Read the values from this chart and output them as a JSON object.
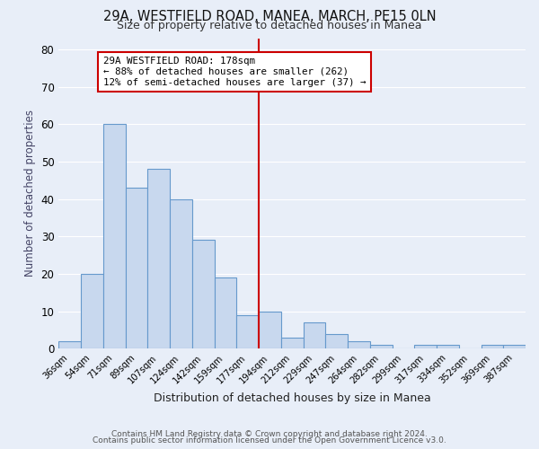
{
  "title": "29A, WESTFIELD ROAD, MANEA, MARCH, PE15 0LN",
  "subtitle": "Size of property relative to detached houses in Manea",
  "xlabel": "Distribution of detached houses by size in Manea",
  "ylabel": "Number of detached properties",
  "bar_color": "#c8d8ee",
  "bar_edge_color": "#6699cc",
  "background_color": "#e8eef8",
  "grid_color": "#ffffff",
  "vline_color": "#cc0000",
  "annotation_text": "29A WESTFIELD ROAD: 178sqm\n← 88% of detached houses are smaller (262)\n12% of semi-detached houses are larger (37) →",
  "annotation_box_facecolor": "#ffffff",
  "annotation_box_edgecolor": "#cc0000",
  "footer_line1": "Contains HM Land Registry data © Crown copyright and database right 2024.",
  "footer_line2": "Contains public sector information licensed under the Open Government Licence v3.0.",
  "categories": [
    "36sqm",
    "54sqm",
    "71sqm",
    "89sqm",
    "107sqm",
    "124sqm",
    "142sqm",
    "159sqm",
    "177sqm",
    "194sqm",
    "212sqm",
    "229sqm",
    "247sqm",
    "264sqm",
    "282sqm",
    "299sqm",
    "317sqm",
    "334sqm",
    "352sqm",
    "369sqm",
    "387sqm"
  ],
  "values": [
    2,
    20,
    60,
    43,
    48,
    40,
    29,
    19,
    9,
    10,
    3,
    7,
    4,
    2,
    1,
    0,
    1,
    1,
    0,
    1,
    1
  ],
  "ylim": [
    0,
    83
  ],
  "yticks": [
    0,
    10,
    20,
    30,
    40,
    50,
    60,
    70,
    80
  ],
  "vline_index": 8
}
